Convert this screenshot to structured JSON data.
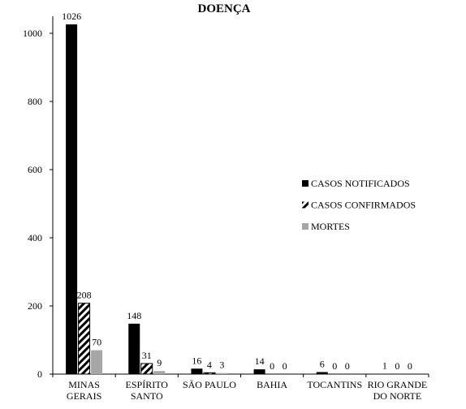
{
  "chart_data": {
    "type": "bar",
    "title": "DOENÇA",
    "xlabel": "",
    "ylabel": "",
    "ylim": [
      0,
      1050
    ],
    "yticks": [
      0,
      200,
      400,
      600,
      800,
      1000
    ],
    "grid": false,
    "legend_position": "right",
    "categories": [
      [
        "MINAS",
        "GERAIS"
      ],
      [
        "ESPÍRITO",
        "SANTO"
      ],
      [
        "SÃO PAULO"
      ],
      [
        "BAHIA"
      ],
      [
        "TOCANTINS"
      ],
      [
        "RIO GRANDE",
        "DO NORTE"
      ]
    ],
    "series": [
      {
        "name": "CASOS NOTIFICADOS",
        "values": [
          1026,
          148,
          16,
          14,
          6,
          1
        ],
        "color": "#000000",
        "pattern": "solid"
      },
      {
        "name": "CASOS CONFIRMADOS",
        "values": [
          208,
          31,
          4,
          0,
          0,
          0
        ],
        "color": "#000000",
        "pattern": "diagonal-hatch"
      },
      {
        "name": "MORTES",
        "values": [
          70,
          9,
          3,
          0,
          0,
          0
        ],
        "color": "#a6a6a6",
        "pattern": "solid"
      }
    ]
  }
}
